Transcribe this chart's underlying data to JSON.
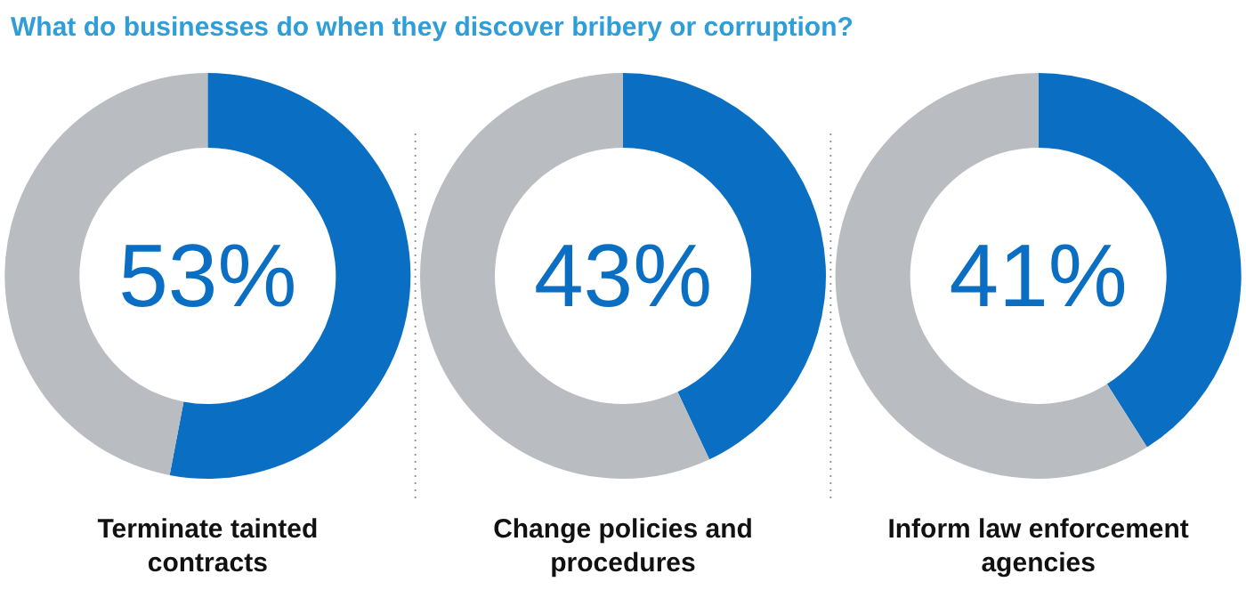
{
  "chart_data": [
    {
      "type": "donut",
      "title": "What do businesses do when they discover bribery or corruption?",
      "xlabel": "Terminate tainted contracts",
      "categories": [
        null,
        null
      ],
      "values": [
        53,
        47
      ],
      "colors": [
        "#0a6fc2",
        "#b9bdc1"
      ],
      "annotations": [
        "53%"
      ]
    },
    {
      "type": "donut",
      "xlabel": "Change policies and procedures",
      "categories": [
        null,
        null
      ],
      "values": [
        43,
        57
      ],
      "colors": [
        "#0a6fc2",
        "#b9bdc1"
      ],
      "annotations": [
        "43%"
      ]
    },
    {
      "type": "donut",
      "xlabel": "Inform law enforcement agencies",
      "categories": [
        null,
        null
      ],
      "values": [
        41,
        59
      ],
      "colors": [
        "#0a6fc2",
        "#b9bdc1"
      ],
      "annotations": [
        "41%"
      ]
    }
  ]
}
